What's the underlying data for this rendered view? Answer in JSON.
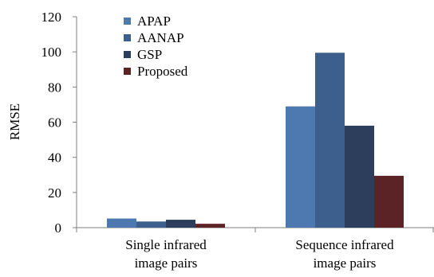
{
  "chart_data": {
    "type": "bar",
    "title": "",
    "xlabel": "",
    "ylabel": "RMSE",
    "ylim": [
      0,
      120
    ],
    "yticks": [
      "0",
      "20",
      "40",
      "60",
      "80",
      "100",
      "120"
    ],
    "categories": [
      [
        "Single infrared",
        "image pairs"
      ],
      [
        "Sequence infrared",
        "image pairs"
      ]
    ],
    "series": [
      {
        "name": "APAP",
        "color": "#4e79b0",
        "values": [
          5.2,
          69.0
        ]
      },
      {
        "name": "AANAP",
        "color": "#3d5f8e",
        "values": [
          3.5,
          99.5
        ]
      },
      {
        "name": "GSP",
        "color": "#2c3e5c",
        "values": [
          4.5,
          58.0
        ]
      },
      {
        "name": "Proposed",
        "color": "#5b2326",
        "values": [
          2.2,
          29.5
        ]
      }
    ],
    "grid": false,
    "legend_position": "top-left"
  }
}
